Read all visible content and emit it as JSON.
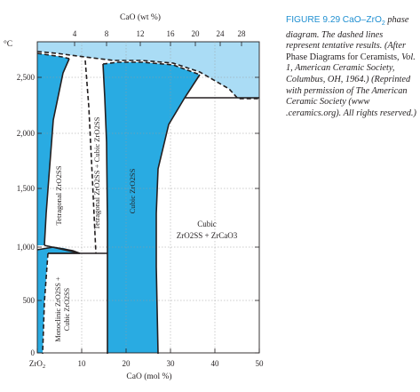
{
  "caption": {
    "figure_label": "FIGURE 9.29",
    "title_lead": "CaO–ZrO",
    "title_sub": "2",
    "title_tail": " phase diagram. The dashed lines represent tentative results. (",
    "after": "After",
    "citation_regular": " Phase Diagrams for Ceramists,",
    "citation_tail": " Vol. 1, American Ceramic Society, Columbus, OH, 1964.) (Reprinted with permission of The American Ceramic Society (www .ceramics.org). All rights reserved.)"
  },
  "top_axis": {
    "label": "CaO (wt %)",
    "ticks": [
      "4",
      "8",
      "12",
      "16",
      "20",
      "24",
      "28"
    ]
  },
  "bottom_axis": {
    "label": "CaO (mol %)",
    "ticks": [
      "ZrO2",
      "10",
      "20",
      "30",
      "40",
      "50"
    ]
  },
  "left_axis": {
    "unit": "°C",
    "ticks": [
      "0",
      "500",
      "1,000",
      "1,500",
      "2,000",
      "2,500"
    ]
  },
  "regions": {
    "tetragonal": "Tetragonal ZrO2SS",
    "tetragonal_cubic": "Tetragonal ZrO2SS + Cubic ZrO2SS",
    "cubic": "Cubic ZrO2SS",
    "cubic_zrcao_line1": "Cubic",
    "cubic_zrcao_line2": "ZrO2SS + ZrCaO3",
    "monoclinic_line1": "Monoclinic ZrO2SS +",
    "monoclinic_line2": "Cubic ZrO2SS"
  },
  "colors": {
    "phase_fill": "#29abe2",
    "liquid_fill": "#aadcf5",
    "caption_head": "#1f8fd1",
    "line": "#231f20"
  }
}
